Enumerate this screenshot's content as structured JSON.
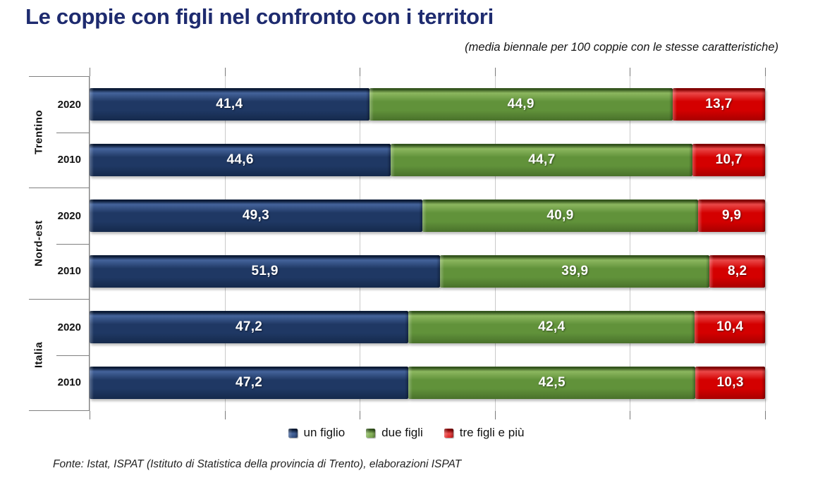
{
  "title": "Le coppie con figli nel confronto con i territori",
  "subtitle": "(media biennale per 100 coppie con le stesse caratteristiche)",
  "source_note": "Fonte: Istat, ISPAT (Istituto di Statistica della provincia di Trento), elaborazioni ISPAT",
  "colors": {
    "background": "#FFFFFF",
    "title": "#1E2B6F",
    "axis_line": "#808080",
    "gridline": "#C9C9C9",
    "label_text": "#111111",
    "value_label": "#FFFFFF"
  },
  "chart_data": {
    "type": "bar",
    "orientation": "horizontal",
    "stacked": true,
    "stacked_100_percent": true,
    "title": "Le coppie con figli nel confronto con i territori",
    "subtitle": "(media biennale per 100 coppie con le stesse caratteristiche)",
    "xlabel": "",
    "ylabel": "",
    "xlim": [
      0,
      100
    ],
    "gridline_step": 20,
    "grid": true,
    "legend_position": "bottom",
    "decimal_separator": ",",
    "series": [
      {
        "name": "un figlio",
        "color": "#1F3864",
        "color_light": "#44639B",
        "color_dark": "#152A4C",
        "color_edge": "#0B1B36"
      },
      {
        "name": "due figli",
        "color": "#61923A",
        "color_light": "#8CB75F",
        "color_dark": "#49712B",
        "color_edge": "#33541D"
      },
      {
        "name": "tre figli e più",
        "color": "#D40000",
        "color_light": "#EA4848",
        "color_dark": "#A80000",
        "color_edge": "#800000"
      }
    ],
    "groups": [
      {
        "label": "Trentino",
        "bars": [
          {
            "year": "2020",
            "values": [
              41.4,
              44.9,
              13.7
            ]
          },
          {
            "year": "2010",
            "values": [
              44.6,
              44.7,
              10.7
            ]
          }
        ]
      },
      {
        "label": "Nord-est",
        "bars": [
          {
            "year": "2020",
            "values": [
              49.3,
              40.9,
              9.9
            ]
          },
          {
            "year": "2010",
            "values": [
              51.9,
              39.9,
              8.2
            ]
          }
        ]
      },
      {
        "label": "Italia",
        "bars": [
          {
            "year": "2020",
            "values": [
              47.2,
              42.4,
              10.4
            ]
          },
          {
            "year": "2010",
            "values": [
              47.2,
              42.5,
              10.3
            ]
          }
        ]
      }
    ]
  }
}
